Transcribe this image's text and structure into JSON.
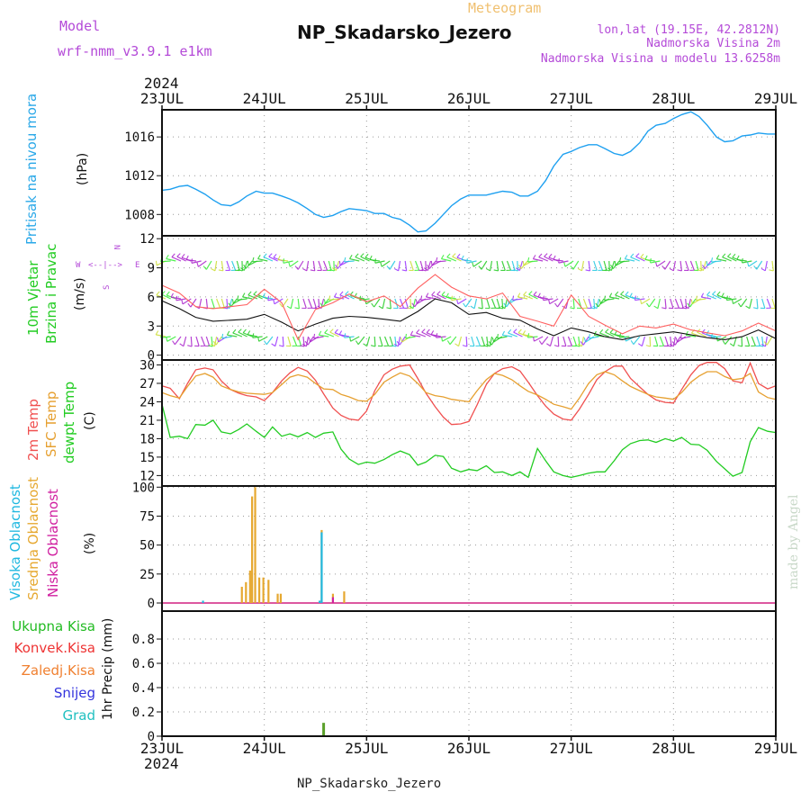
{
  "header": {
    "model_label": "Model",
    "model_name": "wrf-nmm_v3.9.1 e1km",
    "kind": "Meteogram",
    "station": "NP_Skadarsko_Jezero",
    "lonlat": "lon,lat (19.15E, 42.2812N)",
    "elev": "Nadmorska Visina 2m",
    "elev_model": "Nadmorska Visina u modelu 13.6258m",
    "year_top": "2024",
    "year_bottom": "2024",
    "footer": "NP_Skadarsko_Jezero",
    "credit": "made by Angel"
  },
  "dates": [
    "23JUL",
    "24JUL",
    "25JUL",
    "26JUL",
    "27JUL",
    "28JUL",
    "29JUL"
  ],
  "colors": {
    "pressure": "#1ea0f0",
    "t2m": "#f05050",
    "tsfc": "#e6a030",
    "dewpt": "#22cc22",
    "high_cloud": "#20b8e0",
    "mid_cloud": "#e6a830",
    "low_cloud": "#d020a0",
    "total_precip": "#22bb22",
    "conv_precip": "#ee3333",
    "frozen": "#f08030",
    "snow": "#3333dd",
    "hail": "#20c0c0",
    "wind_avg": "#111111",
    "wind_gust": "#ff6060",
    "purple_label": "#b44ad8"
  },
  "panels": {
    "pressure": {
      "labels": [
        "Pritisak na nivou mora",
        "(hPa)"
      ],
      "yticks": [
        "1008",
        "1012",
        "1016"
      ]
    },
    "wind": {
      "labels": [
        "10m Vjetar",
        "Brzina i Pravac",
        "(m/s)"
      ],
      "compass": [
        "N",
        "S",
        "W",
        "E",
        "<-",
        "->",
        "<--|-->"
      ],
      "yticks": [
        "0",
        "3",
        "6",
        "9",
        "12"
      ]
    },
    "temp": {
      "labels": [
        "2m Temp",
        "SFC Temp",
        "dewpt Temp",
        "(C)"
      ],
      "yticks": [
        "12",
        "15",
        "18",
        "21",
        "24",
        "27",
        "30"
      ]
    },
    "cloud": {
      "labels": [
        "Visoka Oblacnost",
        "Srednja Oblacnost",
        "Niska Oblacnost",
        "(%)"
      ],
      "yticks": [
        "0",
        "25",
        "50",
        "75",
        "100"
      ]
    },
    "precip": {
      "labels": [
        "Ukupna Kisa",
        "Konvek.Kisa",
        "Zaledj.Kisa",
        "Snijeg",
        "Grad",
        "1hr Precip (mm)"
      ],
      "yticks": [
        "0",
        "0.2",
        "0.4",
        "0.6",
        "0.8"
      ]
    }
  },
  "chart_data": [
    {
      "type": "line",
      "title": "",
      "xlabel": "",
      "ylabel": "Pritisak na nivou mora (hPa)",
      "x_unit": "days since 23JUL 00UTC",
      "ylim": [
        1005.8,
        1018.8
      ],
      "series": [
        {
          "name": "Pritisak na nivou mora",
          "x": [
            0,
            0.08,
            0.17,
            0.25,
            0.33,
            0.42,
            0.5,
            0.58,
            0.67,
            0.75,
            0.83,
            0.92,
            1,
            1.08,
            1.17,
            1.25,
            1.33,
            1.42,
            1.5,
            1.58,
            1.67,
            1.75,
            1.83,
            1.92,
            2,
            2.08,
            2.17,
            2.25,
            2.33,
            2.42,
            2.5,
            2.58,
            2.67,
            2.75,
            2.83,
            2.92,
            3,
            3.08,
            3.17,
            3.25,
            3.33,
            3.42,
            3.5,
            3.58,
            3.67,
            3.75,
            3.83,
            3.92,
            4,
            4.08,
            4.17,
            4.25,
            4.33,
            4.42,
            4.5,
            4.58,
            4.67,
            4.75,
            4.83,
            4.92,
            5,
            5.08,
            5.17,
            5.25,
            5.33,
            5.42,
            5.5,
            5.58,
            5.67,
            5.75,
            5.83,
            5.92,
            6
          ],
          "y": [
            1010.5,
            1010.6,
            1010.9,
            1011.0,
            1010.6,
            1010.1,
            1009.5,
            1009.0,
            1008.9,
            1009.3,
            1009.9,
            1010.4,
            1010.2,
            1010.2,
            1009.9,
            1009.6,
            1009.2,
            1008.6,
            1008.0,
            1007.7,
            1007.9,
            1008.3,
            1008.6,
            1008.5,
            1008.4,
            1008.1,
            1008.1,
            1007.7,
            1007.5,
            1006.9,
            1006.2,
            1006.3,
            1007.1,
            1008.0,
            1008.9,
            1009.6,
            1010.0,
            1010.0,
            1010.0,
            1010.2,
            1010.4,
            1010.3,
            1009.9,
            1009.9,
            1010.4,
            1011.5,
            1013.0,
            1014.2,
            1014.5,
            1014.9,
            1015.2,
            1015.2,
            1014.8,
            1014.3,
            1014.1,
            1014.5,
            1015.4,
            1016.6,
            1017.2,
            1017.4,
            1017.9,
            1018.3,
            1018.6,
            1018.1,
            1017.2,
            1016.0,
            1015.5,
            1015.6,
            1016.1,
            1016.2,
            1016.4,
            1016.3,
            1016.3
          ]
        }
      ]
    },
    {
      "type": "line",
      "title": "",
      "xlabel": "",
      "ylabel": "10m Vjetar Brzina i Pravac (m/s)",
      "x_unit": "days since 23JUL 00UTC",
      "ylim": [
        -0.5,
        12.3
      ],
      "series": [
        {
          "name": "",
          "x": [
            0,
            0.17,
            0.33,
            0.5,
            0.67,
            0.83,
            1,
            1.17,
            1.33,
            1.5,
            1.67,
            1.83,
            2,
            2.17,
            2.33,
            2.5,
            2.67,
            2.83,
            3,
            3.17,
            3.33,
            3.5,
            3.67,
            3.83,
            4,
            4.17,
            4.33,
            4.5,
            4.67,
            4.83,
            5,
            5.17,
            5.33,
            5.5,
            5.67,
            5.83,
            6
          ],
          "y": [
            5.6,
            4.8,
            3.9,
            3.5,
            3.6,
            3.7,
            4.2,
            3.4,
            2.5,
            3.2,
            3.8,
            4.0,
            3.9,
            3.7,
            3.5,
            4.5,
            5.8,
            5.4,
            4.2,
            4.4,
            3.8,
            3.6,
            2.7,
            2.0,
            2.8,
            2.4,
            1.9,
            1.6,
            2.0,
            2.2,
            2.4,
            2.1,
            1.8,
            1.6,
            1.9,
            2.6,
            1.7
          ]
        },
        {
          "name": "",
          "x": [
            0,
            0.17,
            0.33,
            0.5,
            0.67,
            0.83,
            1,
            1.17,
            1.33,
            1.5,
            1.67,
            1.83,
            2,
            2.17,
            2.33,
            2.5,
            2.67,
            2.83,
            3,
            3.17,
            3.33,
            3.5,
            3.67,
            3.83,
            4,
            4.17,
            4.33,
            4.5,
            4.67,
            4.83,
            5,
            5.17,
            5.33,
            5.5,
            5.67,
            5.83,
            6
          ],
          "y": [
            7.2,
            6.4,
            5.0,
            4.8,
            5.0,
            5.2,
            6.8,
            5.4,
            1.6,
            4.7,
            5.4,
            6.3,
            5.5,
            6.1,
            5.0,
            6.9,
            8.3,
            7.0,
            6.1,
            5.8,
            6.4,
            4.0,
            3.5,
            3.0,
            6.2,
            4.0,
            3.1,
            2.2,
            3.0,
            2.8,
            3.2,
            2.6,
            2.3,
            2.0,
            2.5,
            3.3,
            2.5
          ]
        }
      ]
    },
    {
      "type": "line",
      "title": "",
      "xlabel": "",
      "ylabel": "Temp (C)",
      "x_unit": "days since 23JUL 00UTC",
      "ylim": [
        10.3,
        30.8
      ],
      "series": [
        {
          "name": "2m Temp",
          "x": [
            0,
            0.08,
            0.17,
            0.25,
            0.33,
            0.42,
            0.5,
            0.58,
            0.67,
            0.75,
            0.83,
            0.92,
            1,
            1.08,
            1.17,
            1.25,
            1.33,
            1.42,
            1.5,
            1.58,
            1.67,
            1.75,
            1.83,
            1.92,
            2,
            2.08,
            2.17,
            2.25,
            2.33,
            2.42,
            2.5,
            2.58,
            2.67,
            2.75,
            2.83,
            2.92,
            3,
            3.08,
            3.17,
            3.25,
            3.33,
            3.42,
            3.5,
            3.58,
            3.67,
            3.75,
            3.83,
            3.92,
            4,
            4.08,
            4.17,
            4.25,
            4.33,
            4.42,
            4.5,
            4.58,
            4.67,
            4.75,
            4.83,
            4.92,
            5,
            5.08,
            5.17,
            5.25,
            5.33,
            5.42,
            5.5,
            5.58,
            5.67,
            5.75,
            5.83,
            5.92,
            6
          ],
          "y": [
            26.6,
            26.2,
            24.5,
            27.0,
            29.2,
            29.5,
            29.2,
            27.4,
            26.0,
            25.4,
            25.0,
            24.8,
            24.2,
            25.5,
            27.4,
            28.7,
            29.6,
            29.0,
            27.5,
            25.3,
            23.0,
            21.8,
            21.2,
            21.0,
            22.5,
            25.8,
            28.4,
            29.3,
            29.8,
            30.0,
            27.8,
            25.4,
            23.2,
            21.5,
            20.3,
            20.4,
            20.8,
            23.5,
            26.8,
            28.6,
            29.4,
            29.7,
            29.0,
            27.2,
            25.0,
            23.3,
            22.0,
            21.2,
            21.0,
            22.8,
            25.2,
            27.6,
            28.9,
            29.8,
            29.8,
            27.8,
            26.4,
            25.2,
            24.3,
            23.9,
            23.8,
            26.0,
            28.4,
            29.9,
            30.4,
            30.4,
            29.4,
            27.4,
            27.1,
            30.3,
            27.0,
            26.1,
            26.6
          ]
        },
        {
          "name": "SFC Temp",
          "x": [
            0,
            0.08,
            0.17,
            0.25,
            0.33,
            0.42,
            0.5,
            0.58,
            0.67,
            0.75,
            0.83,
            0.92,
            1,
            1.08,
            1.17,
            1.25,
            1.33,
            1.42,
            1.5,
            1.58,
            1.67,
            1.75,
            1.83,
            1.92,
            2,
            2.08,
            2.17,
            2.25,
            2.33,
            2.42,
            2.5,
            2.58,
            2.67,
            2.75,
            2.83,
            2.92,
            3,
            3.08,
            3.17,
            3.25,
            3.33,
            3.42,
            3.5,
            3.58,
            3.67,
            3.75,
            3.83,
            3.92,
            4,
            4.08,
            4.17,
            4.25,
            4.33,
            4.42,
            4.5,
            4.58,
            4.67,
            4.75,
            4.83,
            4.92,
            5,
            5.08,
            5.17,
            5.25,
            5.33,
            5.42,
            5.5,
            5.58,
            5.67,
            5.75,
            5.83,
            5.92,
            6
          ],
          "y": [
            25.5,
            25.0,
            24.6,
            26.5,
            28.2,
            28.6,
            28.0,
            26.6,
            26.0,
            25.6,
            25.4,
            25.3,
            25.2,
            25.5,
            26.8,
            28.0,
            28.4,
            28.0,
            27.0,
            26.1,
            26.0,
            25.2,
            24.8,
            24.2,
            24.1,
            25.2,
            27.2,
            28.0,
            28.7,
            28.2,
            27.0,
            25.5,
            25.0,
            24.8,
            24.4,
            24.2,
            24.0,
            25.8,
            27.6,
            28.6,
            28.3,
            27.6,
            26.6,
            25.7,
            25.1,
            24.4,
            23.6,
            23.2,
            22.8,
            24.6,
            27.0,
            28.4,
            28.9,
            28.4,
            27.4,
            26.5,
            25.8,
            25.2,
            24.8,
            24.6,
            24.4,
            25.5,
            27.2,
            28.2,
            28.9,
            28.9,
            28.1,
            27.6,
            27.8,
            28.6,
            25.6,
            24.7,
            24.4
          ]
        },
        {
          "name": "dewpt Temp",
          "x": [
            0,
            0.08,
            0.17,
            0.25,
            0.33,
            0.42,
            0.5,
            0.58,
            0.67,
            0.75,
            0.83,
            0.92,
            1,
            1.08,
            1.17,
            1.25,
            1.33,
            1.42,
            1.5,
            1.58,
            1.67,
            1.75,
            1.83,
            1.92,
            2,
            2.08,
            2.17,
            2.25,
            2.33,
            2.42,
            2.5,
            2.58,
            2.67,
            2.75,
            2.83,
            2.92,
            3,
            3.08,
            3.17,
            3.25,
            3.33,
            3.42,
            3.5,
            3.58,
            3.67,
            3.75,
            3.83,
            3.92,
            4,
            4.08,
            4.17,
            4.25,
            4.33,
            4.42,
            4.5,
            4.58,
            4.67,
            4.75,
            4.83,
            4.92,
            5,
            5.08,
            5.17,
            5.25,
            5.33,
            5.42,
            5.5,
            5.58,
            5.67,
            5.75,
            5.83,
            5.92,
            6
          ],
          "y": [
            23.6,
            18.2,
            18.4,
            18.0,
            20.3,
            20.2,
            21.0,
            19.1,
            18.8,
            19.5,
            20.4,
            19.2,
            18.2,
            19.9,
            18.4,
            18.8,
            18.3,
            19.0,
            18.2,
            18.9,
            19.1,
            16.3,
            14.7,
            13.8,
            14.2,
            14.0,
            14.6,
            15.4,
            16.0,
            15.4,
            13.7,
            14.2,
            15.3,
            15.1,
            13.2,
            12.6,
            13.0,
            12.8,
            13.6,
            12.5,
            12.6,
            12.0,
            12.6,
            11.7,
            16.4,
            14.4,
            12.6,
            12.0,
            11.7,
            12.0,
            12.4,
            12.6,
            12.6,
            14.4,
            16.2,
            17.2,
            17.7,
            17.8,
            17.4,
            18.0,
            17.6,
            18.2,
            17.1,
            17.0,
            16.1,
            14.3,
            13.1,
            11.9,
            12.5,
            17.5,
            19.8,
            19.2,
            19.0
          ]
        }
      ]
    },
    {
      "type": "bar",
      "title": "",
      "xlabel": "",
      "ylabel": "Oblacnost (%)",
      "x_unit": "days since 23JUL 00UTC",
      "ylim": [
        -7,
        101
      ],
      "series": [
        {
          "name": "Srednja Oblacnost",
          "x": [
            0.78,
            0.82,
            0.86,
            0.88,
            0.91,
            0.95,
            0.99,
            1.04,
            1.13,
            1.16,
            1.56,
            1.67,
            1.78
          ],
          "y": [
            14,
            18,
            28,
            92,
            100,
            22,
            22,
            20,
            8,
            8,
            63,
            8,
            10
          ]
        },
        {
          "name": "Visoka Oblacnost",
          "x": [
            0.4,
            1.54,
            1.56
          ],
          "y": [
            2,
            2,
            61
          ]
        },
        {
          "name": "Niska Oblacnost",
          "x": [
            1.67
          ],
          "y": [
            5
          ]
        }
      ]
    },
    {
      "type": "bar",
      "title": "",
      "xlabel": "",
      "ylabel": "1hr Precip (mm)",
      "x_unit": "days since 23JUL 00UTC",
      "ylim": [
        0,
        1.03
      ],
      "series": [
        {
          "name": "Ukupna Kisa",
          "x": [
            1.58
          ],
          "y": [
            0.11
          ]
        },
        {
          "name": "Konvek.Kisa",
          "x": [],
          "y": []
        },
        {
          "name": "Zaledj.Kisa",
          "x": [],
          "y": []
        },
        {
          "name": "Snijeg",
          "x": [],
          "y": []
        },
        {
          "name": "Grad",
          "x": [],
          "y": []
        }
      ]
    }
  ]
}
